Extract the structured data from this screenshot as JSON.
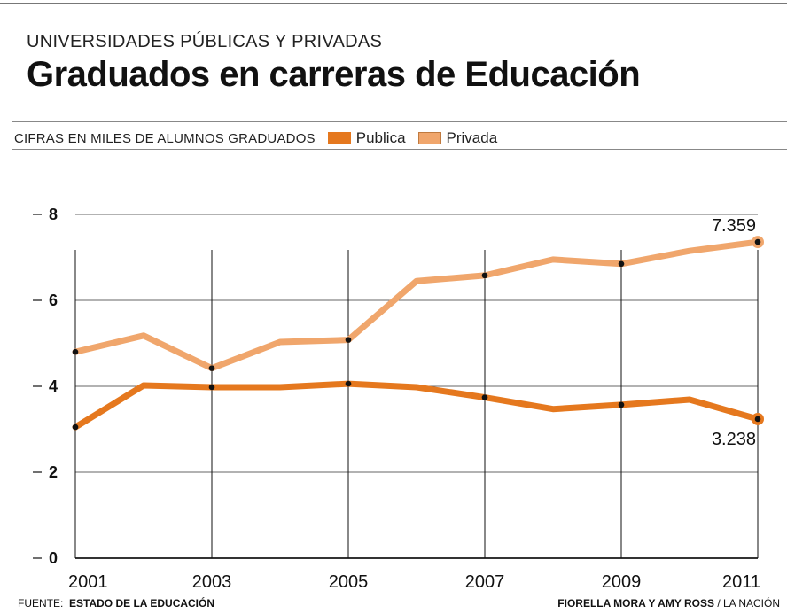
{
  "header": {
    "subtitle": "UNIVERSIDADES PÚBLICAS Y PRIVADAS",
    "title": "Graduados en carreras de Educación",
    "units": "CIFRAS EN MILES DE ALUMNOS GRADUADOS"
  },
  "colors": {
    "publica": "#e5781e",
    "privada": "#f0a66c",
    "gridline": "#333333",
    "marker": "#111111"
  },
  "chart_data": {
    "type": "line",
    "title": "Graduados en carreras de Educación",
    "ylabel": "CIFRAS EN MILES DE ALUMNOS GRADUADOS",
    "x": [
      2001,
      2002,
      2003,
      2004,
      2005,
      2006,
      2007,
      2008,
      2009,
      2010,
      2011
    ],
    "x_tick_labels": [
      "2001",
      "2003",
      "2005",
      "2007",
      "2009",
      "2011"
    ],
    "y_ticks": [
      "0",
      "2",
      "4",
      "6",
      "8"
    ],
    "ylim": [
      0,
      8
    ],
    "grid": true,
    "legend_position": "top",
    "series": [
      {
        "name": "Publica",
        "values": [
          3.05,
          4.02,
          3.98,
          3.98,
          4.06,
          3.98,
          3.74,
          3.47,
          3.57,
          3.69,
          3.238
        ]
      },
      {
        "name": "Privada",
        "values": [
          4.8,
          5.18,
          4.42,
          5.03,
          5.08,
          6.45,
          6.58,
          6.95,
          6.85,
          7.15,
          7.359
        ]
      }
    ],
    "annotations": [
      {
        "series": "Privada",
        "x": 2011,
        "text": "7.359"
      },
      {
        "series": "Publica",
        "x": 2011,
        "text": "3.238"
      }
    ]
  },
  "footer": {
    "source_label": "FUENTE:",
    "source_value": "ESTADO DE LA EDUCACIÓN",
    "authors": "FIORELLA MORA Y AMY ROSS",
    "outlet": "/ LA NACIÓN"
  }
}
